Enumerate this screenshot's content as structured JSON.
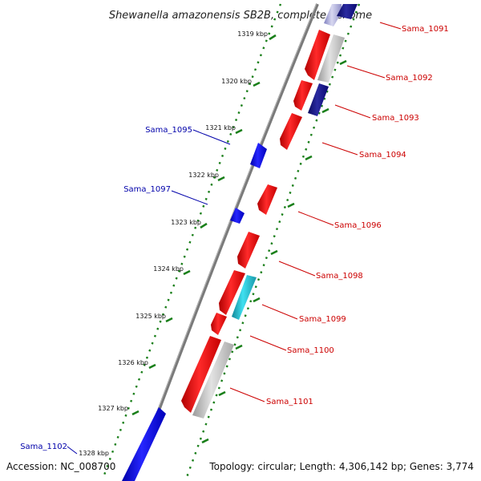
{
  "title": "Shewanella amazonensis SB2B, complete genome",
  "footer": {
    "accession": "Accession: NC_008700",
    "topology": "Topology: circular; Length: 4,306,142 bp; Genes: 3,774"
  },
  "colors": {
    "forward": "#e8141b",
    "reverse": "#1717e0",
    "pseudo": "#c0c0c0",
    "navy": "#131380",
    "cyan": "#20b8c8",
    "backbone": "#7a7a7a",
    "tick": "#1a7f1a",
    "label_forward": "#cc0000",
    "label_reverse": "#0000aa"
  },
  "ticks": [
    "1319 kbp",
    "1320 kbp",
    "1321 kbp",
    "1322 kbp",
    "1323 kbp",
    "1324 kbp",
    "1325 kbp",
    "1326 kbp",
    "1327 kbp",
    "1328 kbp"
  ],
  "genes": [
    {
      "name": "Sama_1091",
      "strand": "+",
      "track": "inner"
    },
    {
      "name": "Sama_1092",
      "strand": "+",
      "track": "inner"
    },
    {
      "name": "Sama_1093",
      "strand": "+",
      "track": "outer"
    },
    {
      "name": "Sama_1094",
      "strand": "+",
      "track": "inner"
    },
    {
      "name": "Sama_1095",
      "strand": "-",
      "track": "reverse"
    },
    {
      "name": "Sama_1096",
      "strand": "+",
      "track": "inner"
    },
    {
      "name": "Sama_1097",
      "strand": "-",
      "track": "reverse"
    },
    {
      "name": "Sama_1098",
      "strand": "+",
      "track": "inner"
    },
    {
      "name": "Sama_1099",
      "strand": "+",
      "track": "outer"
    },
    {
      "name": "Sama_1100",
      "strand": "+",
      "track": "inner"
    },
    {
      "name": "Sama_1101",
      "strand": "+",
      "track": "outer"
    },
    {
      "name": "Sama_1102",
      "strand": "-",
      "track": "reverse"
    }
  ]
}
